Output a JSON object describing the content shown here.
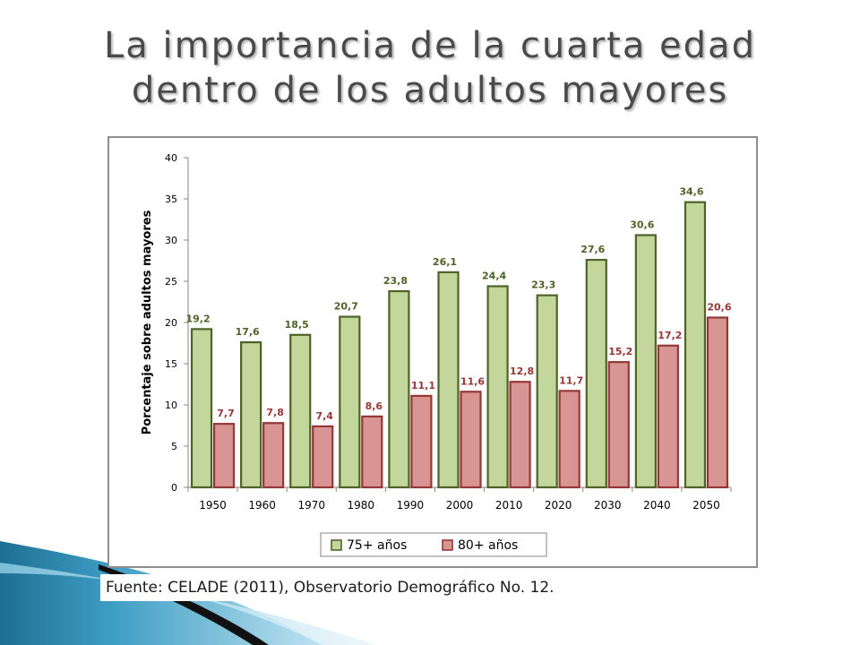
{
  "slide": {
    "title_line1": "La importancia de la cuarta edad",
    "title_line2": "dentro de los adultos mayores",
    "source": "Fuente: CELADE (2011), Observatorio Demográfico No. 12."
  },
  "chart_data": {
    "type": "bar",
    "title": "",
    "xlabel": "",
    "ylabel": "Porcentaje sobre adultos mayores",
    "ylim": [
      0,
      40
    ],
    "yticks": [
      0,
      5,
      10,
      15,
      20,
      25,
      30,
      35,
      40
    ],
    "grid": false,
    "legend_position": "bottom",
    "categories": [
      "1950",
      "1960",
      "1970",
      "1980",
      "1990",
      "2000",
      "2010",
      "2020",
      "2030",
      "2040",
      "2050"
    ],
    "series": [
      {
        "name": "75+ años",
        "color": "#c3d69b",
        "edge": "#4f6228",
        "label_color": "#4f6228",
        "values": [
          19.2,
          17.6,
          18.5,
          20.7,
          23.8,
          26.1,
          24.4,
          23.3,
          27.6,
          30.6,
          34.6
        ],
        "labels": [
          "19,2",
          "17,6",
          "18,5",
          "20,7",
          "23,8",
          "26,1",
          "24,4",
          "23,3",
          "27,6",
          "30,6",
          "34,6"
        ]
      },
      {
        "name": "80+ años",
        "color": "#d99594",
        "edge": "#953735",
        "label_color": "#953735",
        "values": [
          7.7,
          7.8,
          7.4,
          8.6,
          11.1,
          11.6,
          12.8,
          11.7,
          15.2,
          17.2,
          20.6
        ],
        "labels": [
          "7,7",
          "7,8",
          "7,4",
          "8,6",
          "11,1",
          "11,6",
          "12,8",
          "11,7",
          "15,2",
          "17,2",
          "20,6"
        ]
      }
    ]
  }
}
